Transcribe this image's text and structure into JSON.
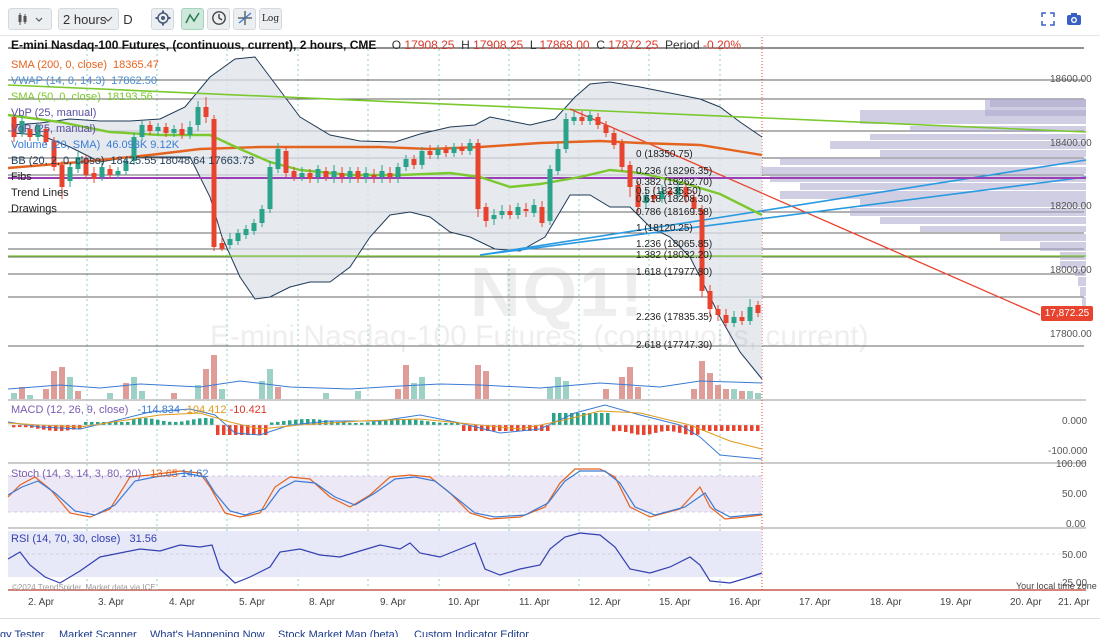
{
  "toolbar": {
    "interval": "2 hours",
    "d_label": "D",
    "log_label": "Log",
    "chart_type_icon": "candles-icon",
    "settings_icon": "gear-icon",
    "indicators_icon": "indicator-icon",
    "time_icon": "clock-icon",
    "drawing_icon": "crosshair-icon",
    "fullscreen_icon": "fullscreen-icon",
    "camera_icon": "camera-icon"
  },
  "header": {
    "title": "E-mini Nasdaq-100 Futures, (continuous, current), 2 hours, CME",
    "o_label": "O",
    "o": "17908.25",
    "h_label": "H",
    "h": "17908.25",
    "l_label": "L",
    "l": "17868.00",
    "c_label": "C",
    "c": "17872.25",
    "period_label": "Period",
    "period": "-0.20%"
  },
  "legend": [
    {
      "label": "SMA (200, 0, close)",
      "value": "18365.47",
      "color": "#e4631f"
    },
    {
      "label": "VWAP (14, 0, 14.3)",
      "value": "17862.50",
      "color": "#4a8fd6"
    },
    {
      "label": "SMA (50, 0, close)",
      "value": "18193.56",
      "color": "#7bc82f"
    },
    {
      "label": "VbP (25, manual)",
      "value": "",
      "color": "#5b4fa0"
    },
    {
      "label": "VoP (25, manual)",
      "value": "",
      "color": "#5b4fa0"
    },
    {
      "label": "Volume (20, SMA)",
      "value": "46.093K 9.12K",
      "color": "#3a7bd5"
    },
    {
      "label": "BB (20, 2, 0, close)",
      "value": "18425.55 18048.64 17663.73",
      "color": "#1f3a56"
    },
    {
      "label": "Fibs",
      "value": "",
      "color": "#222"
    },
    {
      "label": "Trend Lines",
      "value": "",
      "color": "#222"
    },
    {
      "label": "Drawings",
      "value": "",
      "color": "#222"
    }
  ],
  "price_axis": [
    "18600.00",
    "18400.00",
    "18200.00",
    "18000.00",
    "17800.00"
  ],
  "current_price": "17,872.25",
  "fibs": [
    {
      "label": "0 (18350.75)"
    },
    {
      "label": "0.236 (18296.35)"
    },
    {
      "label": "0.382 (18262.70)"
    },
    {
      "label": "0.5 (18235.50)"
    },
    {
      "label": "0.618 (18208.30)"
    },
    {
      "label": "0.786 (18169.58)"
    },
    {
      "label": "1 (18120.25)"
    },
    {
      "label": "1.236 (18065.85)"
    },
    {
      "label": "1.382 (18032.20)"
    },
    {
      "label": "1.618 (17977.80)"
    },
    {
      "label": "2.236 (17835.35)"
    },
    {
      "label": "2.618 (17747.30)"
    }
  ],
  "watermark": {
    "symbol": "NQ1!",
    "name": "E-mini Nasdaq-100 Futures, (continuous, current)"
  },
  "macd": {
    "label": "MACD (12, 26, 9, close)",
    "v1": "-114.834",
    "v2": "-104.412",
    "v3": "-10.421",
    "axis": [
      "0.000",
      "-100.000"
    ]
  },
  "stoch": {
    "label": "Stoch (14, 3, 14, 3, 80, 20)",
    "v1": "13.65",
    "v2": "14.62",
    "axis": [
      "100.00",
      "50.00",
      "0.00"
    ]
  },
  "rsi": {
    "label": "RSI (14, 70, 30, close)",
    "v1": "31.56",
    "axis": [
      "50.00",
      "25.00"
    ]
  },
  "x_axis": [
    "2. Apr",
    "3. Apr",
    "4. Apr",
    "5. Apr",
    "8. Apr",
    "9. Apr",
    "10. Apr",
    "11. Apr",
    "12. Apr",
    "15. Apr",
    "16. Apr",
    "17. Apr",
    "18. Apr",
    "19. Apr",
    "20. Apr",
    "21. Apr"
  ],
  "copyright": "©2024 TrendSpider. Market data via ICE",
  "local_time": "Your local time zone",
  "bottom_tabs": [
    "gy Tester",
    "Market Scanner",
    "What's Happening Now",
    "Stock Market Map (beta)",
    "Custom Indicator Editor"
  ],
  "colors": {
    "up": "#2aa38a",
    "down": "#e8432e",
    "sma200": "#e4631f",
    "sma50": "#7bc82f",
    "bb_fill": "#dde3ea",
    "profile": "#a9a6cc"
  }
}
